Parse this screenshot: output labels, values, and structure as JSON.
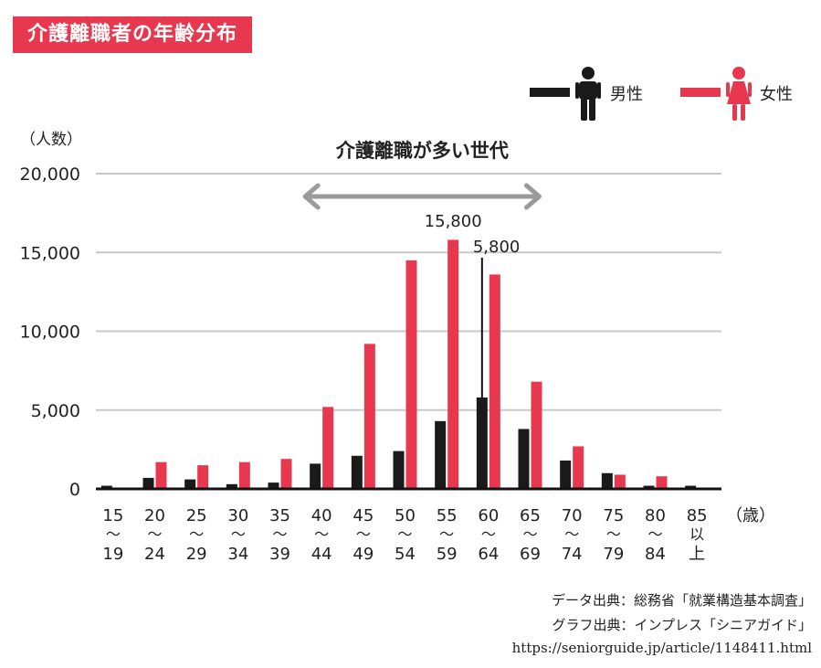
{
  "title": "介護離職者の年齢分布",
  "legend": {
    "male": "男性",
    "female": "女性"
  },
  "colors": {
    "male": "#1a1a1a",
    "female": "#e8384f",
    "title_bg": "#e8384f",
    "arrow": "#9a9a9a",
    "grid": "#c8c8c8"
  },
  "icons": {
    "male": "male-figure-icon",
    "female": "female-figure-icon"
  },
  "annotation": {
    "label": "介護離職が多い世代",
    "from_category": "40〜44",
    "to_category": "65〜69"
  },
  "callouts": {
    "female_peak": "15,800",
    "male_peak": "5,800"
  },
  "source": {
    "line1": "データ出典：総務省「就業構造基本調査」",
    "line2": "グラフ出典：インプレス「シニアガイド」",
    "line3": "https://seniorguide.jp/article/1148411.html"
  },
  "chart_data": {
    "type": "bar",
    "title": "介護離職者の年齢分布",
    "ylabel": "（人数）",
    "xlabel": "（歳）",
    "ylim": [
      0,
      20000
    ],
    "yticks": [
      "0",
      "5,000",
      "10,000",
      "15,000",
      "20,000"
    ],
    "grid": true,
    "legend_position": "top-right",
    "categories": [
      "15〜19",
      "20〜24",
      "25〜29",
      "30〜34",
      "35〜39",
      "40〜44",
      "45〜49",
      "50〜54",
      "55〜59",
      "60〜64",
      "65〜69",
      "70〜74",
      "75〜79",
      "80〜84",
      "85以上"
    ],
    "tick_labels": [
      [
        "15",
        "〜",
        "19"
      ],
      [
        "20",
        "〜",
        "24"
      ],
      [
        "25",
        "〜",
        "29"
      ],
      [
        "30",
        "〜",
        "34"
      ],
      [
        "35",
        "〜",
        "39"
      ],
      [
        "40",
        "〜",
        "44"
      ],
      [
        "45",
        "〜",
        "49"
      ],
      [
        "50",
        "〜",
        "54"
      ],
      [
        "55",
        "〜",
        "59"
      ],
      [
        "60",
        "〜",
        "64"
      ],
      [
        "65",
        "〜",
        "69"
      ],
      [
        "70",
        "〜",
        "74"
      ],
      [
        "75",
        "〜",
        "79"
      ],
      [
        "80",
        "〜",
        "84"
      ],
      [
        "85",
        "以",
        "上"
      ]
    ],
    "series": [
      {
        "name": "男性",
        "values": [
          200,
          700,
          600,
          300,
          400,
          1600,
          2100,
          2400,
          4300,
          5800,
          3800,
          1800,
          1000,
          200,
          200
        ]
      },
      {
        "name": "女性",
        "values": [
          0,
          1700,
          1500,
          1700,
          1900,
          5200,
          9200,
          14500,
          15800,
          13600,
          6800,
          2700,
          900,
          800,
          0
        ]
      }
    ]
  }
}
